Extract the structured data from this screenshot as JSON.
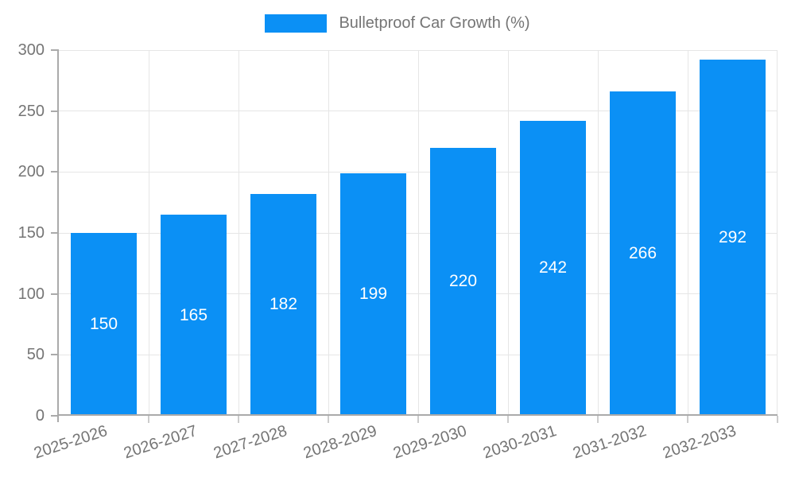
{
  "chart_data": {
    "type": "bar",
    "title": "",
    "legend": {
      "label": "Bulletproof Car Growth (%)",
      "position": "top"
    },
    "categories": [
      "2025-2026",
      "2026-2027",
      "2027-2028",
      "2028-2029",
      "2029-2030",
      "2030-2031",
      "2031-2032",
      "2032-2033"
    ],
    "values": [
      150,
      165,
      182,
      199,
      220,
      242,
      266,
      292
    ],
    "xlabel": "",
    "ylabel": "",
    "ylim": [
      0,
      300
    ],
    "yticks": [
      0,
      50,
      100,
      150,
      200,
      250,
      300
    ],
    "grid": true,
    "value_labels": "centered-in-bar",
    "x_label_rotation_deg": -18,
    "colors": {
      "bar": "#0b90f5",
      "bar_value_text": "#ffffff",
      "grid": "#e6e6e6",
      "axis": "#aaaaaa",
      "x_tick": "#cccccc",
      "axis_text": "#757575",
      "background": "#ffffff"
    }
  }
}
